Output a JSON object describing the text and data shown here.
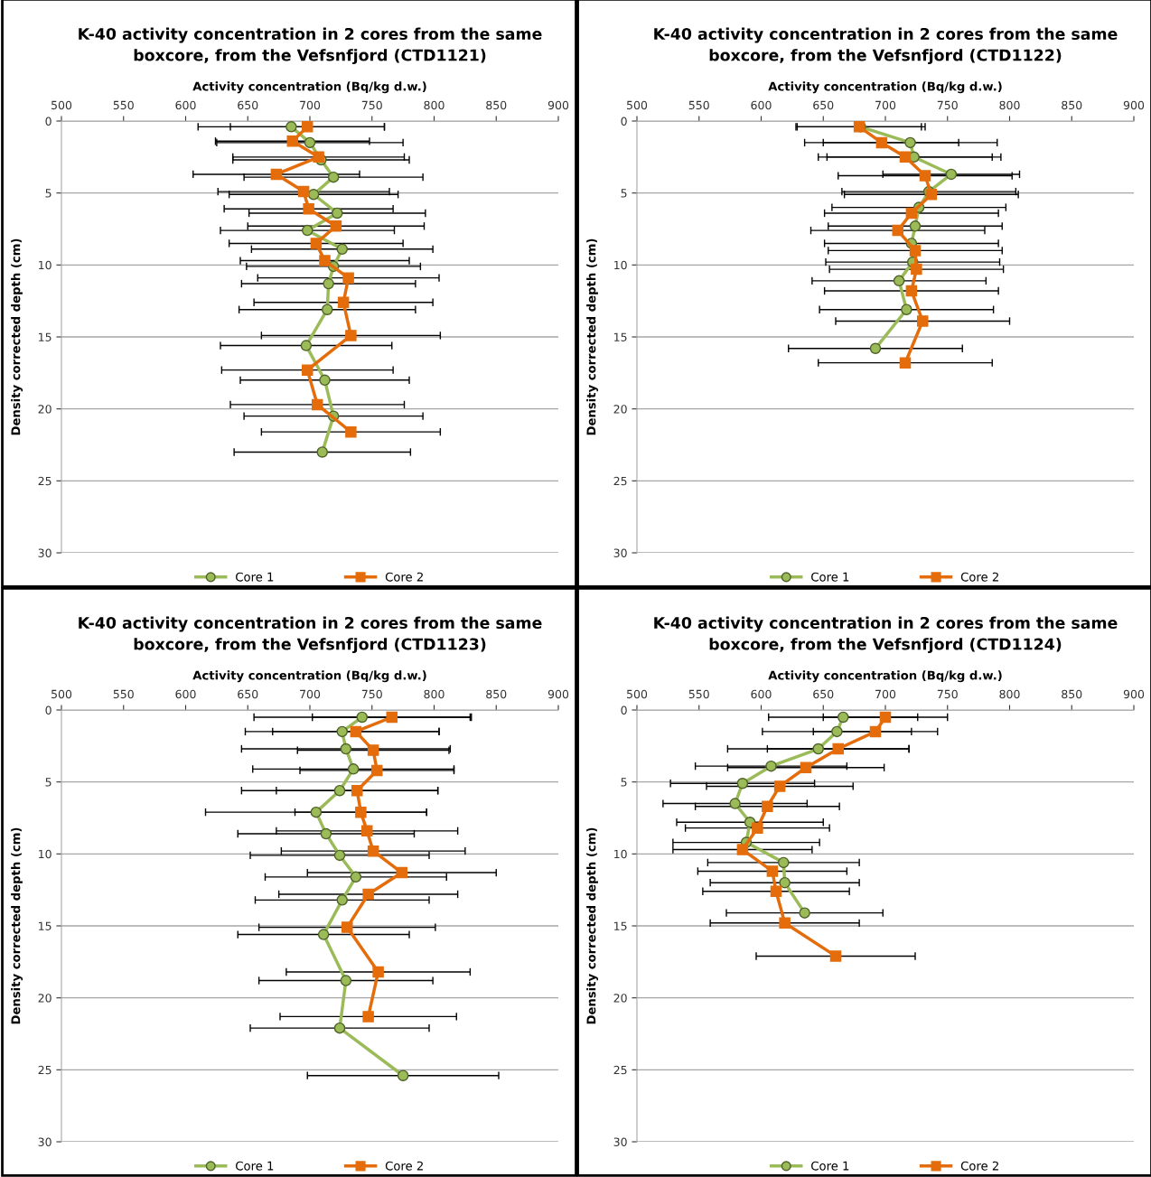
{
  "chart_data": [
    {
      "type": "line",
      "title": "K-40 activity concentration in 2 cores from the same\nboxcore, from the Vefsnfjord (CTD1121)",
      "xlabel": "Activity concentration (Bq/kg d.w.)",
      "ylabel": "Density corrected depth (cm)",
      "xlim": [
        500,
        900
      ],
      "xticks": [
        500,
        550,
        600,
        650,
        700,
        750,
        800,
        850,
        900
      ],
      "ylim": [
        30,
        0
      ],
      "yticks": [
        0,
        5,
        10,
        15,
        20,
        25,
        30
      ],
      "grid": "y",
      "legend": "bottom",
      "series": [
        {
          "name": "Core 1",
          "color": "#9bbb59",
          "marker": "circle",
          "x": [
            685,
            700,
            709,
            719,
            703,
            722,
            698,
            726,
            719,
            715,
            714,
            697,
            712,
            719,
            710
          ],
          "values": [
            0.4,
            1.5,
            2.7,
            3.9,
            5.1,
            6.4,
            7.6,
            8.9,
            10.1,
            11.3,
            13.1,
            15.6,
            18.0,
            20.5,
            23.0
          ],
          "xerrors": [
            75,
            75,
            71,
            72,
            68,
            71,
            70,
            73,
            70,
            70,
            71,
            69,
            68,
            72,
            71
          ]
        },
        {
          "name": "Core 2",
          "color": "#e46c0a",
          "marker": "square",
          "x": [
            698,
            686,
            707,
            673,
            695,
            699,
            721,
            705,
            712,
            731,
            727,
            733,
            698,
            706,
            733
          ],
          "values": [
            0.4,
            1.4,
            2.5,
            3.7,
            4.9,
            6.1,
            7.3,
            8.5,
            9.7,
            10.9,
            12.6,
            14.9,
            17.3,
            19.7,
            21.6
          ],
          "xerrors": [
            62,
            62,
            69,
            67,
            69,
            68,
            71,
            70,
            68,
            73,
            72,
            72,
            69,
            70,
            72
          ]
        }
      ]
    },
    {
      "type": "line",
      "title": "K-40 activity concentration in 2 cores from the same\nboxcore, from the Vefsnfjord (CTD1122)",
      "xlabel": "Activity concentration (Bq/kg d.w.)",
      "ylabel": "Density corrected depth (cm)",
      "xlim": [
        500,
        900
      ],
      "xticks": [
        500,
        550,
        600,
        650,
        700,
        750,
        800,
        850,
        900
      ],
      "ylim": [
        30,
        0
      ],
      "yticks": [
        0,
        5,
        10,
        15,
        20,
        25,
        30
      ],
      "grid": "y",
      "legend": "bottom",
      "series": [
        {
          "name": "Core 1",
          "color": "#9bbb59",
          "marker": "circle",
          "x": [
            680,
            720,
            723,
            753,
            735,
            727,
            724,
            721,
            722,
            711,
            717,
            692
          ],
          "values": [
            0.4,
            1.5,
            2.5,
            3.7,
            4.9,
            6.0,
            7.3,
            8.5,
            9.8,
            11.1,
            13.1,
            15.8
          ],
          "xerrors": [
            52,
            70,
            70,
            55,
            70,
            70,
            70,
            70,
            70,
            70,
            70,
            70
          ]
        },
        {
          "name": "Core 2",
          "color": "#e46c0a",
          "marker": "square",
          "x": [
            679,
            697,
            716,
            732,
            737,
            721,
            710,
            724,
            725,
            721,
            730,
            716
          ],
          "values": [
            0.4,
            1.5,
            2.5,
            3.8,
            5.1,
            6.4,
            7.6,
            9.0,
            10.3,
            11.8,
            13.9,
            16.8
          ],
          "xerrors": [
            50,
            62,
            70,
            70,
            70,
            70,
            70,
            70,
            70,
            70,
            70,
            70
          ]
        }
      ]
    },
    {
      "type": "line",
      "title": "K-40 activity concentration in 2 cores from the same\nboxcore, from the Vefsnfjord (CTD1123)",
      "xlabel": "Activity concentration (Bq/kg d.w.)",
      "ylabel": "Density corrected depth (cm)",
      "xlim": [
        500,
        900
      ],
      "xticks": [
        500,
        550,
        600,
        650,
        700,
        750,
        800,
        850,
        900
      ],
      "ylim": [
        30,
        0
      ],
      "yticks": [
        0,
        5,
        10,
        15,
        20,
        25,
        30
      ],
      "grid": "y",
      "legend": "bottom",
      "series": [
        {
          "name": "Core 1",
          "color": "#9bbb59",
          "marker": "circle",
          "x": [
            742,
            726,
            729,
            735,
            724,
            705,
            713,
            724,
            737,
            726,
            711,
            729,
            724,
            775
          ],
          "values": [
            0.5,
            1.5,
            2.7,
            4.1,
            5.6,
            7.1,
            8.6,
            10.1,
            11.6,
            13.2,
            15.6,
            18.8,
            22.1,
            25.4
          ],
          "xerrors": [
            87,
            78,
            84,
            81,
            79,
            89,
            71,
            72,
            73,
            70,
            69,
            70,
            72,
            77
          ]
        },
        {
          "name": "Core 2",
          "color": "#e46c0a",
          "marker": "square",
          "x": [
            766,
            737,
            751,
            754,
            738,
            741,
            746,
            751,
            774,
            747,
            730,
            755,
            747
          ],
          "values": [
            0.5,
            1.5,
            2.8,
            4.2,
            5.6,
            7.1,
            8.4,
            9.8,
            11.3,
            12.8,
            15.1,
            18.2,
            21.3
          ],
          "xerrors": [
            64,
            67,
            61,
            62,
            65,
            53,
            73,
            74,
            76,
            72,
            71,
            74,
            71
          ]
        }
      ]
    },
    {
      "type": "line",
      "title": "K-40 activity concentration in 2 cores from the same\nboxcore, from the Vefsnfjord (CTD1124)",
      "xlabel": "Activity concentration (Bq/kg d.w.)",
      "ylabel": "Density corrected depth (cm)",
      "xlim": [
        500,
        900
      ],
      "xticks": [
        500,
        550,
        600,
        650,
        700,
        750,
        800,
        850,
        900
      ],
      "ylim": [
        30,
        0
      ],
      "yticks": [
        0,
        5,
        10,
        15,
        20,
        25,
        30
      ],
      "grid": "y",
      "legend": "bottom",
      "series": [
        {
          "name": "Core 1",
          "color": "#9bbb59",
          "marker": "circle",
          "x": [
            666,
            661,
            646,
            608,
            585,
            579,
            591,
            588,
            618,
            619,
            635
          ],
          "values": [
            0.5,
            1.5,
            2.7,
            3.9,
            5.1,
            6.5,
            7.8,
            9.2,
            10.6,
            12.0,
            14.1
          ],
          "xerrors": [
            60,
            60,
            73,
            61,
            58,
            58,
            59,
            59,
            61,
            60,
            63
          ]
        },
        {
          "name": "Core 2",
          "color": "#e46c0a",
          "marker": "square",
          "x": [
            700,
            692,
            662,
            636,
            615,
            605,
            597,
            585,
            609,
            612,
            619,
            660
          ],
          "values": [
            0.5,
            1.5,
            2.7,
            4.0,
            5.3,
            6.7,
            8.2,
            9.7,
            11.2,
            12.6,
            14.8,
            17.1
          ],
          "xerrors": [
            50,
            50,
            57,
            63,
            59,
            58,
            58,
            56,
            60,
            59,
            60,
            64
          ]
        }
      ]
    }
  ]
}
